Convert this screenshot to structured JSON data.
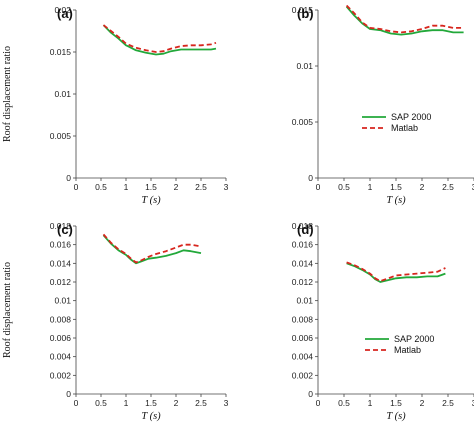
{
  "series_styles": {
    "SAP 2000": {
      "color": "#22a83a",
      "dash": "none",
      "width": 1.8
    },
    "Matlab": {
      "color": "#d7261e",
      "dash": "5,3",
      "width": 1.8
    }
  },
  "chart_data": [
    {
      "type": "line",
      "panel": "(a)",
      "ylabel": "Roof displacement ratio",
      "xlabel": "T (s)",
      "xlim": [
        0,
        3
      ],
      "ylim": [
        0,
        0.02
      ],
      "xticks": [
        "0",
        "0.5",
        "1",
        "1.5",
        "2",
        "2.5",
        "3"
      ],
      "yticks": [
        "0",
        "0.005",
        "0.01",
        "0.015",
        "0.02"
      ],
      "legend": [],
      "series": [
        {
          "name": "SAP 2000",
          "x": [
            0.55,
            0.7,
            0.85,
            1.0,
            1.2,
            1.4,
            1.6,
            1.75,
            1.9,
            2.1,
            2.3,
            2.5,
            2.7,
            2.8
          ],
          "y": [
            0.0182,
            0.0173,
            0.0166,
            0.0158,
            0.0152,
            0.0149,
            0.0147,
            0.0148,
            0.0151,
            0.0153,
            0.0153,
            0.0153,
            0.0153,
            0.0154
          ]
        },
        {
          "name": "Matlab",
          "x": [
            0.55,
            0.7,
            0.85,
            1.0,
            1.2,
            1.4,
            1.6,
            1.75,
            1.9,
            2.1,
            2.3,
            2.5,
            2.7,
            2.8
          ],
          "y": [
            0.0182,
            0.0175,
            0.0168,
            0.016,
            0.0155,
            0.0152,
            0.015,
            0.0151,
            0.0154,
            0.0157,
            0.0158,
            0.0158,
            0.0159,
            0.0161
          ]
        }
      ]
    },
    {
      "type": "line",
      "panel": "(b)",
      "ylabel": "",
      "xlabel": "T (s)",
      "xlim": [
        0,
        3
      ],
      "ylim": [
        0,
        0.015
      ],
      "xticks": [
        "0",
        "0.5",
        "1",
        "1.5",
        "2",
        "2.5",
        "3"
      ],
      "yticks": [
        "0",
        "0.005",
        "0.01",
        "0.015"
      ],
      "legend": [
        "SAP 2000",
        "Matlab"
      ],
      "legend_position": "right",
      "series": [
        {
          "name": "SAP 2000",
          "x": [
            0.55,
            0.7,
            0.85,
            1.0,
            1.2,
            1.4,
            1.6,
            1.8,
            2.0,
            2.2,
            2.4,
            2.6,
            2.8
          ],
          "y": [
            0.0153,
            0.0145,
            0.0138,
            0.0133,
            0.0132,
            0.0129,
            0.0128,
            0.0129,
            0.0131,
            0.0132,
            0.0132,
            0.013,
            0.013
          ]
        },
        {
          "name": "Matlab",
          "x": [
            0.55,
            0.7,
            0.85,
            1.0,
            1.2,
            1.4,
            1.6,
            1.8,
            2.0,
            2.2,
            2.4,
            2.6,
            2.8
          ],
          "y": [
            0.0154,
            0.0147,
            0.0139,
            0.0134,
            0.0133,
            0.0131,
            0.013,
            0.0131,
            0.0133,
            0.0136,
            0.0136,
            0.0134,
            0.0134
          ]
        }
      ]
    },
    {
      "type": "line",
      "panel": "(c)",
      "ylabel": "Roof displacement ratio",
      "xlabel": "T (s)",
      "xlim": [
        0,
        3
      ],
      "ylim": [
        0,
        0.018
      ],
      "xticks": [
        "0",
        "0.5",
        "1",
        "1.5",
        "2",
        "2.5",
        "3"
      ],
      "yticks": [
        "0",
        "0.002",
        "0.004",
        "0.006",
        "0.008",
        "0.01",
        "0.012",
        "0.014",
        "0.016",
        "0.018"
      ],
      "legend": [],
      "series": [
        {
          "name": "SAP 2000",
          "x": [
            0.55,
            0.7,
            0.85,
            1.0,
            1.1,
            1.2,
            1.3,
            1.45,
            1.6,
            1.8,
            2.0,
            2.15,
            2.3,
            2.5
          ],
          "y": [
            0.017,
            0.0161,
            0.0154,
            0.0149,
            0.0144,
            0.014,
            0.0142,
            0.0145,
            0.0146,
            0.0148,
            0.0151,
            0.0154,
            0.0153,
            0.0151
          ]
        },
        {
          "name": "Matlab",
          "x": [
            0.55,
            0.7,
            0.85,
            1.0,
            1.1,
            1.2,
            1.3,
            1.45,
            1.6,
            1.8,
            2.0,
            2.15,
            2.3,
            2.5
          ],
          "y": [
            0.0171,
            0.0162,
            0.0155,
            0.015,
            0.0145,
            0.0141,
            0.0143,
            0.0147,
            0.015,
            0.0153,
            0.0157,
            0.016,
            0.016,
            0.0158
          ]
        }
      ]
    },
    {
      "type": "line",
      "panel": "(d)",
      "ylabel": "",
      "xlabel": "T (s)",
      "xlim": [
        0,
        3
      ],
      "ylim": [
        0,
        0.018
      ],
      "xticks": [
        "0",
        "0.5",
        "1",
        "1.5",
        "2",
        "2.5",
        "3"
      ],
      "yticks": [
        "0",
        "0.002",
        "0.004",
        "0.006",
        "0.008",
        "0.01",
        "0.012",
        "0.014",
        "0.016",
        "0.018"
      ],
      "legend": [
        "SAP 2000",
        "Matlab"
      ],
      "legend_position": "bottom-right",
      "series": [
        {
          "name": "SAP 2000",
          "x": [
            0.55,
            0.7,
            0.85,
            1.0,
            1.1,
            1.2,
            1.35,
            1.5,
            1.7,
            1.9,
            2.1,
            2.3,
            2.45
          ],
          "y": [
            0.014,
            0.0137,
            0.0133,
            0.0128,
            0.0123,
            0.012,
            0.0122,
            0.0124,
            0.0125,
            0.0125,
            0.0126,
            0.0126,
            0.0129
          ]
        },
        {
          "name": "Matlab",
          "x": [
            0.55,
            0.7,
            0.85,
            1.0,
            1.1,
            1.2,
            1.35,
            1.5,
            1.7,
            1.9,
            2.1,
            2.3,
            2.45
          ],
          "y": [
            0.0141,
            0.0138,
            0.0134,
            0.0129,
            0.0124,
            0.0121,
            0.0124,
            0.0127,
            0.0128,
            0.0129,
            0.013,
            0.0131,
            0.0135
          ]
        }
      ]
    }
  ]
}
